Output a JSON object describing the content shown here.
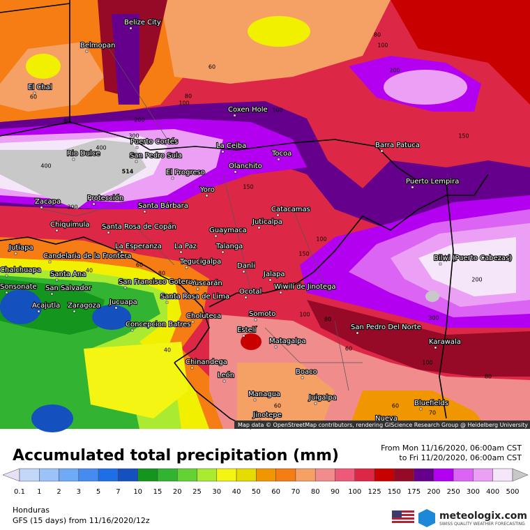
{
  "map": {
    "cities": [
      "Belize City",
      "Belmopan",
      "El Chal",
      "Coxen Hole",
      "Puerto Cortés",
      "La Ceiba",
      "Rio Dulce",
      "San Pedro Sula",
      "Tocoa",
      "Barra Patuca",
      "El Progreso",
      "Olanchito",
      "Puerto Lempira",
      "Yoro",
      "Zacapa",
      "Protección",
      "Santa Bárbara",
      "Catacamas",
      "Chiquimula",
      "Juticalpa",
      "Santa Rosa de Copán",
      "Guaymaca",
      "Jutiapa",
      "Candelaria de la Frontera",
      "La Esperanza",
      "La Paz",
      "Talanga",
      "Bilwi (Puerto Cabezas)",
      "Tegucigalpa",
      "Danli",
      "Jalapa",
      "Chalchuapa",
      "Santa Ana",
      "San Francisco Gotera",
      "Yuscarán",
      "Wiwilí de Jinotega",
      "Sonsonate",
      "San Salvador",
      "Ocotal",
      "Santa Rosa de Lima",
      "Acajutla",
      "Zaragoza",
      "Jucuapa",
      "Somoto",
      "Choluteca",
      "Concepcion Batres",
      "Estelí",
      "San Pedro Del Norte",
      "Karawala",
      "Matagalpa",
      "Chinandega",
      "Boaco",
      "León",
      "Managua",
      "Juigalpa",
      "Bluefields",
      "Jinotepe",
      "Nueva"
    ],
    "contour_labels": [
      80,
      100,
      200,
      60,
      80,
      100,
      60,
      100,
      150,
      80,
      200,
      300,
      400,
      400,
      514,
      300,
      150,
      100,
      150,
      60,
      80,
      40,
      200,
      300,
      100,
      80,
      60,
      100,
      80,
      40,
      60,
      60,
      70
    ],
    "attribution": "Map data © OpenStreetMap contributors, rendering GIScience Research Group @ Heidelberg University"
  },
  "header": {
    "title": "Accumulated total precipitation (mm)",
    "from": "From Mon 11/16/2020, 06:00am CST",
    "to": "to Fri 11/20/2020, 06:00am CST"
  },
  "legend": {
    "labels": [
      0.1,
      1,
      2,
      3,
      5,
      7,
      10,
      15,
      20,
      25,
      30,
      40,
      50,
      60,
      70,
      80,
      90,
      100,
      125,
      150,
      175,
      200,
      250,
      300,
      400,
      500
    ],
    "colors": [
      "#e6e1f5",
      "#c3d7fa",
      "#9bc3fa",
      "#6eaaf5",
      "#468cf0",
      "#1e6ee6",
      "#1450be",
      "#14961e",
      "#32b432",
      "#64d232",
      "#aaeb32",
      "#f5f514",
      "#e6dc00",
      "#f09600",
      "#f57d14",
      "#f5a064",
      "#f08c8c",
      "#ec5a78",
      "#dc2846",
      "#c80000",
      "#960a28",
      "#64008c",
      "#b400f0",
      "#dc64f5",
      "#eba0f5",
      "#f5e6fa",
      "#c8c8c8"
    ]
  },
  "footer": {
    "region": "Honduras",
    "model": "GFS (15 days) from 11/16/2020/12z",
    "logo": "meteologix.com",
    "tagline": "SWISS QUALITY WEATHER FORECASTING"
  }
}
